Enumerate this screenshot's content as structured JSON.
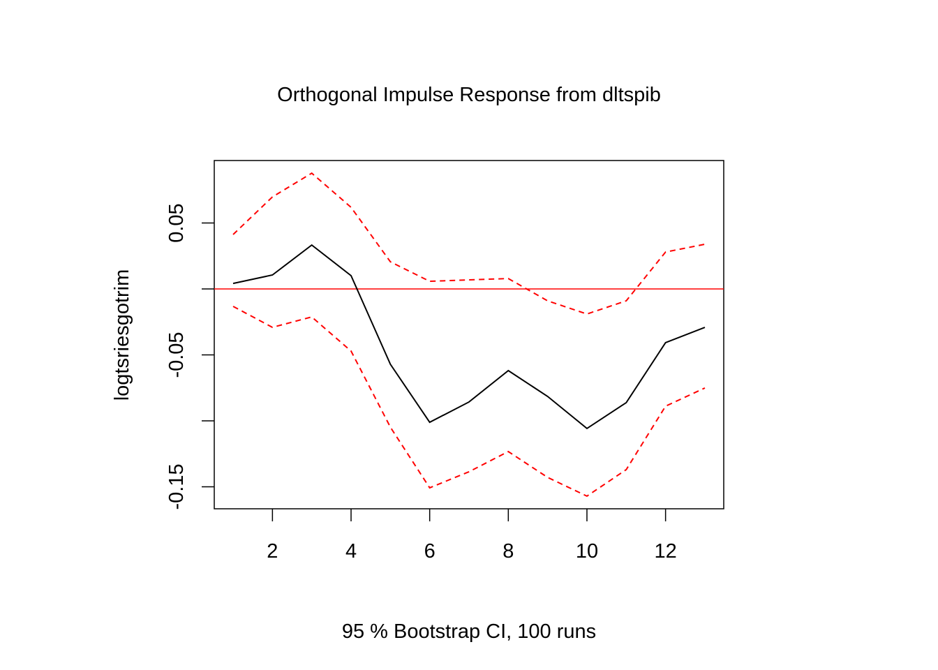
{
  "chart_data": {
    "type": "line",
    "title": "Orthogonal Impulse Response from dltspib",
    "xlabel": "95 % Bootstrap CI,  100 runs",
    "ylabel": "logtsriesgotrim",
    "xlim": [
      0.52,
      13.48
    ],
    "ylim": [
      -0.1667,
      0.0974
    ],
    "xticks": [
      2,
      4,
      6,
      8,
      10,
      12
    ],
    "xtick_labels": [
      "2",
      "4",
      "6",
      "8",
      "10",
      "12"
    ],
    "yticks": [
      0.05,
      0,
      -0.05,
      -0.1,
      -0.15
    ],
    "ytick_labels": [
      "0.05",
      "",
      "-0.05",
      "",
      "-0.15"
    ],
    "grid": false,
    "reference_line": {
      "y": 0,
      "color": "#ff0000"
    },
    "x": [
      1,
      2,
      3,
      4,
      5,
      6,
      7,
      8,
      9,
      10,
      11,
      12,
      13
    ],
    "series": [
      {
        "name": "response",
        "color": "#000000",
        "dash": false,
        "values": [
          0.0042,
          0.0106,
          0.0333,
          0.0101,
          -0.0571,
          -0.1011,
          -0.0857,
          -0.0619,
          -0.0815,
          -0.1058,
          -0.0862,
          -0.0407,
          -0.0291
        ]
      },
      {
        "name": "upper",
        "color": "#ff0000",
        "dash": true,
        "values": [
          0.0413,
          0.0698,
          0.0878,
          0.0619,
          0.0206,
          0.0058,
          0.0069,
          0.0079,
          -0.009,
          -0.019,
          -0.009,
          0.028,
          0.0339
        ]
      },
      {
        "name": "lower",
        "color": "#ff0000",
        "dash": true,
        "values": [
          -0.0132,
          -0.0291,
          -0.0212,
          -0.0471,
          -0.1048,
          -0.1508,
          -0.1386,
          -0.1233,
          -0.1429,
          -0.1571,
          -0.137,
          -0.0889,
          -0.0751
        ]
      }
    ]
  }
}
